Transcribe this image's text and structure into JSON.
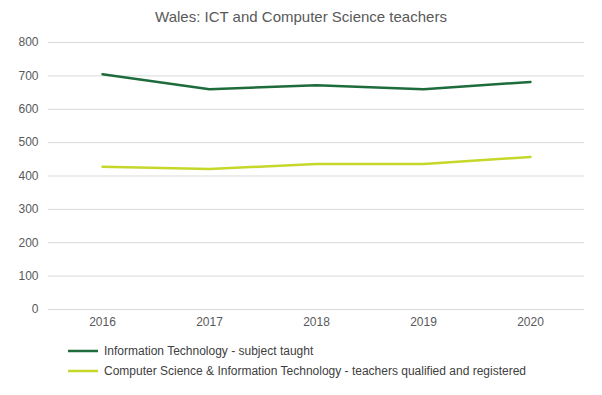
{
  "chart_data": {
    "type": "line",
    "title": "Wales: ICT and Computer Science teachers",
    "categories": [
      "2016",
      "2017",
      "2018",
      "2019",
      "2020"
    ],
    "series": [
      {
        "name": "Information Technology - subject taught",
        "color": "#1e6b3c",
        "values": [
          705,
          660,
          672,
          660,
          682
        ]
      },
      {
        "name": "Computer Science & Information Technology - teachers qualified and registered",
        "color": "#c5d82a",
        "values": [
          428,
          421,
          436,
          436,
          457
        ]
      }
    ],
    "ylim": [
      0,
      800
    ],
    "yticks": [
      0,
      100,
      200,
      300,
      400,
      500,
      600,
      700,
      800
    ],
    "grid": true,
    "legend": "bottom"
  }
}
